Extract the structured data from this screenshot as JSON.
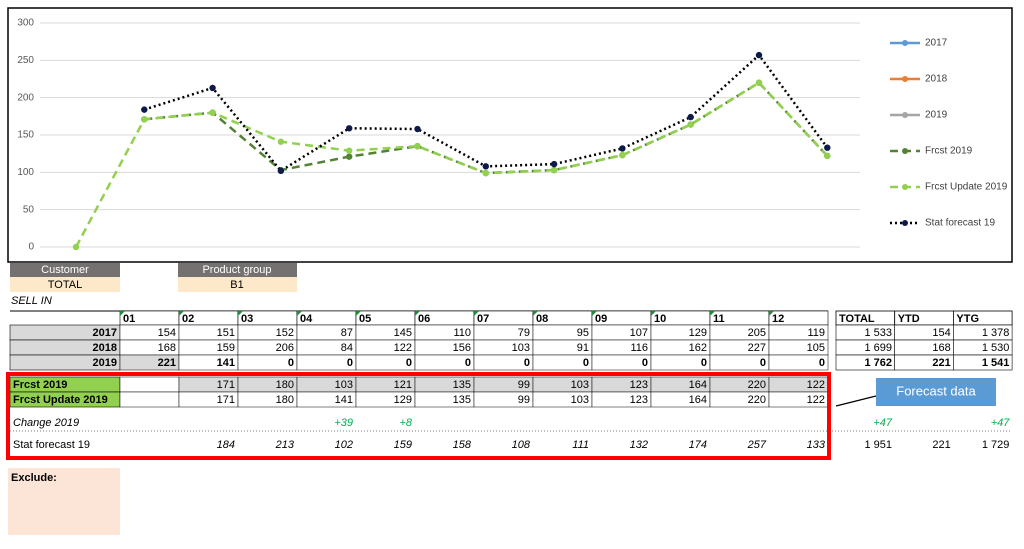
{
  "chart_data": {
    "type": "line",
    "ylim": [
      0,
      300
    ],
    "yticks": [
      0,
      50,
      100,
      150,
      200,
      250,
      300
    ],
    "grid": true,
    "legend": "right",
    "categories": [
      null,
      null,
      null,
      null,
      null,
      null,
      null,
      null,
      null,
      null,
      null,
      null
    ],
    "series": [
      {
        "name": "2017",
        "color": "#5b9bd5",
        "dash": "solid",
        "values": [
          null,
          null,
          null,
          null,
          null,
          null,
          null,
          null,
          null,
          null,
          null,
          null
        ]
      },
      {
        "name": "2018",
        "color": "#ed7d31",
        "dash": "solid",
        "values": [
          null,
          null,
          null,
          null,
          null,
          null,
          null,
          null,
          null,
          null,
          null,
          null
        ]
      },
      {
        "name": "2019",
        "color": "#a5a5a5",
        "dash": "solid",
        "values": [
          null,
          null,
          null,
          null,
          null,
          null,
          null,
          null,
          null,
          null,
          null,
          null
        ]
      },
      {
        "name": "Frcst 2019",
        "color": "#548235",
        "dash": "dashed",
        "values": [
          null,
          171,
          180,
          103,
          121,
          135,
          99,
          103,
          123,
          164,
          220,
          122
        ]
      },
      {
        "name": "Frcst Update 2019",
        "color": "#92d050",
        "dash": "dashed",
        "values": [
          0,
          171,
          180,
          141,
          129,
          135,
          99,
          103,
          123,
          164,
          220,
          122
        ]
      },
      {
        "name": "Stat forecast 19",
        "color": "#000000",
        "marker_color": "#0d1b4a",
        "dash": "dotted",
        "values": [
          null,
          184,
          213,
          102,
          159,
          158,
          108,
          111,
          132,
          174,
          257,
          133
        ]
      }
    ]
  },
  "filters": {
    "customer_label": "Customer",
    "customer": "TOTAL",
    "product_group_label": "Product group",
    "product_group": "B1"
  },
  "section": "SELL IN",
  "table": {
    "months": [
      "01",
      "02",
      "03",
      "04",
      "05",
      "06",
      "07",
      "08",
      "09",
      "10",
      "11",
      "12"
    ],
    "total_headers": [
      "TOTAL",
      "YTD",
      "YTG"
    ],
    "rows": [
      {
        "label": "2017",
        "cells": [
          "154",
          "151",
          "152",
          "87",
          "145",
          "110",
          "79",
          "95",
          "107",
          "129",
          "205",
          "119"
        ],
        "totals": [
          "1 533",
          "154",
          "1 378"
        ]
      },
      {
        "label": "2018",
        "cells": [
          "168",
          "159",
          "206",
          "84",
          "122",
          "156",
          "103",
          "91",
          "116",
          "162",
          "227",
          "105"
        ],
        "totals": [
          "1 699",
          "168",
          "1 530"
        ]
      },
      {
        "label": "2019",
        "cells": [
          "221",
          "141",
          "0",
          "0",
          "0",
          "0",
          "0",
          "0",
          "0",
          "0",
          "0",
          "0"
        ],
        "totals": [
          "1 762",
          "221",
          "1 541"
        ]
      },
      {
        "label": "Frcst 2019",
        "cells": [
          null,
          "171",
          "180",
          "103",
          "121",
          "135",
          "99",
          "103",
          "123",
          "164",
          "220",
          "122"
        ],
        "totals": [
          null,
          null,
          null
        ]
      },
      {
        "label": "Frcst Update 2019",
        "cells": [
          null,
          "171",
          "180",
          "141",
          "129",
          "135",
          "99",
          "103",
          "123",
          "164",
          "220",
          "122"
        ],
        "totals": [
          null,
          null,
          null
        ]
      },
      {
        "label": "Change 2019",
        "cells": [
          null,
          null,
          null,
          "+39",
          "+8",
          null,
          null,
          null,
          null,
          null,
          null,
          null
        ],
        "totals": [
          "+47",
          null,
          "+47"
        ]
      },
      {
        "label": "Stat forecast 19",
        "cells": [
          null,
          "184",
          "213",
          "102",
          "159",
          "158",
          "108",
          "111",
          "132",
          "174",
          "257",
          "133"
        ],
        "totals": [
          "1 951",
          "221",
          "1 729"
        ]
      }
    ]
  },
  "exclude_label": "Exclude:",
  "callout": "Forecast data"
}
